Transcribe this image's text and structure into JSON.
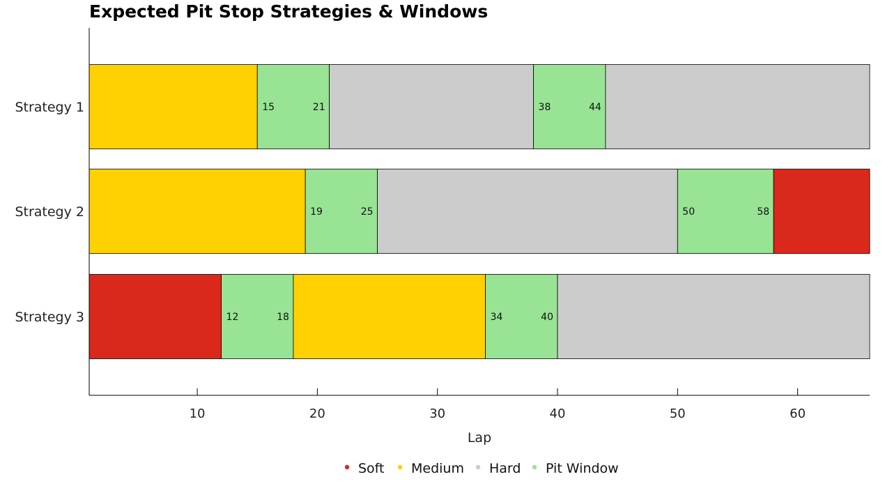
{
  "chart_data": {
    "type": "bar",
    "orientation": "horizontal-stacked",
    "title": "Expected Pit Stop Strategies & Windows",
    "xlabel": "Lap",
    "ylabel": "",
    "xlim": [
      1,
      66
    ],
    "xticks": [
      10,
      20,
      30,
      40,
      50,
      60
    ],
    "grid": false,
    "legend_position": "bottom-center",
    "colors": {
      "Soft": "#da291c",
      "Medium": "#ffd100",
      "Hard": "#cccccc",
      "Pit Window": "#98e394"
    },
    "legend": [
      "Soft",
      "Medium",
      "Hard",
      "Pit Window"
    ],
    "categories": [
      "Strategy 1",
      "Strategy 2",
      "Strategy 3"
    ],
    "strategies": [
      {
        "name": "Strategy 1",
        "segments": [
          {
            "compound": "Medium",
            "start": 1,
            "end": 15
          },
          {
            "compound": "Pit Window",
            "start": 15,
            "end": 21,
            "labels": [
              "15",
              "21"
            ]
          },
          {
            "compound": "Hard",
            "start": 21,
            "end": 38
          },
          {
            "compound": "Pit Window",
            "start": 38,
            "end": 44,
            "labels": [
              "38",
              "44"
            ]
          },
          {
            "compound": "Hard",
            "start": 44,
            "end": 66
          }
        ]
      },
      {
        "name": "Strategy 2",
        "segments": [
          {
            "compound": "Medium",
            "start": 1,
            "end": 19
          },
          {
            "compound": "Pit Window",
            "start": 19,
            "end": 25,
            "labels": [
              "19",
              "25"
            ]
          },
          {
            "compound": "Hard",
            "start": 25,
            "end": 50
          },
          {
            "compound": "Pit Window",
            "start": 50,
            "end": 58,
            "labels": [
              "50",
              "58"
            ]
          },
          {
            "compound": "Soft",
            "start": 58,
            "end": 66
          }
        ]
      },
      {
        "name": "Strategy 3",
        "segments": [
          {
            "compound": "Soft",
            "start": 1,
            "end": 12
          },
          {
            "compound": "Pit Window",
            "start": 12,
            "end": 18,
            "labels": [
              "12",
              "18"
            ]
          },
          {
            "compound": "Medium",
            "start": 18,
            "end": 34
          },
          {
            "compound": "Pit Window",
            "start": 34,
            "end": 40,
            "labels": [
              "34",
              "40"
            ]
          },
          {
            "compound": "Hard",
            "start": 40,
            "end": 66
          }
        ]
      }
    ]
  }
}
